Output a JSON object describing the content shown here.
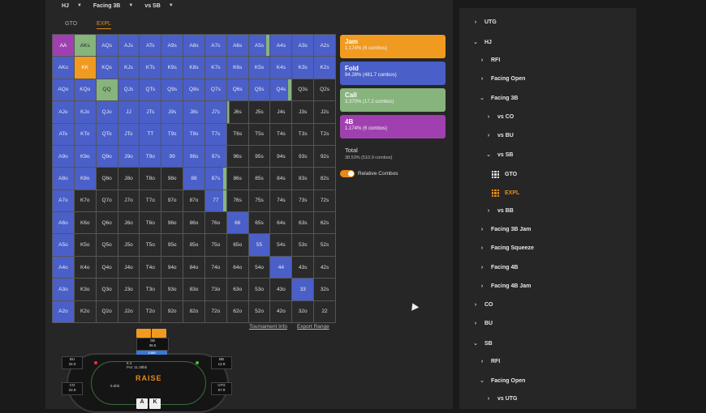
{
  "topbar": {
    "pos1": "HJ",
    "pos2": "Facing 3B",
    "pos3": "vs SB"
  },
  "tabs": [
    "GTO",
    "EXPL"
  ],
  "grid": [
    [
      "AA",
      "AKs",
      "AQs",
      "AJs",
      "ATs",
      "A9s",
      "A8s",
      "A7s",
      "A6s",
      "A5s",
      "A4s",
      "A3s",
      "A2s"
    ],
    [
      "AKo",
      "KK",
      "KQs",
      "KJs",
      "KTs",
      "K9s",
      "K8s",
      "K7s",
      "K6s",
      "K5s",
      "K4s",
      "K3s",
      "K2s"
    ],
    [
      "AQo",
      "KQo",
      "QQ",
      "QJs",
      "QTs",
      "Q9s",
      "Q8s",
      "Q7s",
      "Q6s",
      "Q5s",
      "Q4s",
      "Q3s",
      "Q2s"
    ],
    [
      "AJo",
      "KJo",
      "QJo",
      "JJ",
      "JTs",
      "J9s",
      "J8s",
      "J7s",
      "J6s",
      "J5s",
      "J4s",
      "J3s",
      "J2s"
    ],
    [
      "ATo",
      "KTo",
      "QTo",
      "JTo",
      "TT",
      "T9s",
      "T8s",
      "T7s",
      "T6s",
      "T5s",
      "T4s",
      "T3s",
      "T2s"
    ],
    [
      "A9o",
      "K9o",
      "Q9o",
      "J9o",
      "T9o",
      "99",
      "98s",
      "97s",
      "96s",
      "95s",
      "94s",
      "93s",
      "92s"
    ],
    [
      "A8o",
      "K8o",
      "Q8o",
      "J8o",
      "T8o",
      "98o",
      "88",
      "87s",
      "86s",
      "85s",
      "84s",
      "83s",
      "82s"
    ],
    [
      "A7o",
      "K7o",
      "Q7o",
      "J7o",
      "T7o",
      "97o",
      "87o",
      "77",
      "76s",
      "75s",
      "74s",
      "73s",
      "72s"
    ],
    [
      "A6o",
      "K6o",
      "Q6o",
      "J6o",
      "T6o",
      "96o",
      "86o",
      "76o",
      "66",
      "65s",
      "64s",
      "63s",
      "62s"
    ],
    [
      "A5o",
      "K5o",
      "Q5o",
      "J5o",
      "T5o",
      "95o",
      "85o",
      "75o",
      "65o",
      "55",
      "54s",
      "53s",
      "52s"
    ],
    [
      "A4o",
      "K4o",
      "Q4o",
      "J4o",
      "T4o",
      "94o",
      "84o",
      "74o",
      "64o",
      "54o",
      "44",
      "43s",
      "42s"
    ],
    [
      "A3o",
      "K3o",
      "Q3o",
      "J3o",
      "T3o",
      "93o",
      "83o",
      "73o",
      "63o",
      "53o",
      "43o",
      "33",
      "32s"
    ],
    [
      "A2o",
      "K2o",
      "Q2o",
      "J2o",
      "T2o",
      "92o",
      "82o",
      "72o",
      "62o",
      "52o",
      "42o",
      "32o",
      "22"
    ]
  ],
  "grid_colors": [
    [
      "p",
      "g",
      "b",
      "b",
      "b",
      "b",
      "b",
      "b",
      "b",
      "s",
      "b",
      "b",
      "b"
    ],
    [
      "b",
      "o",
      "b",
      "b",
      "b",
      "b",
      "b",
      "b",
      "b",
      "b",
      "b",
      "b",
      "b"
    ],
    [
      "b",
      "b",
      "g",
      "b",
      "b",
      "b",
      "b",
      "b",
      "b",
      "b",
      "s",
      "d",
      "d"
    ],
    [
      "b",
      "b",
      "b",
      "b",
      "b",
      "b",
      "b",
      "b",
      "x",
      "d",
      "d",
      "d",
      "d"
    ],
    [
      "b",
      "b",
      "b",
      "b",
      "b",
      "b",
      "b",
      "b",
      "d",
      "d",
      "d",
      "d",
      "d"
    ],
    [
      "b",
      "b",
      "b",
      "b",
      "b",
      "b",
      "b",
      "b",
      "d",
      "d",
      "d",
      "d",
      "d"
    ],
    [
      "b",
      "b",
      "d",
      "d",
      "d",
      "d",
      "b",
      "s",
      "d",
      "d",
      "d",
      "d",
      "d"
    ],
    [
      "b",
      "d",
      "d",
      "d",
      "d",
      "d",
      "d",
      "s",
      "d",
      "d",
      "d",
      "d",
      "d"
    ],
    [
      "b",
      "d",
      "d",
      "d",
      "d",
      "d",
      "d",
      "d",
      "b",
      "d",
      "d",
      "d",
      "d"
    ],
    [
      "b",
      "d",
      "d",
      "d",
      "d",
      "d",
      "d",
      "d",
      "d",
      "b",
      "d",
      "d",
      "d"
    ],
    [
      "b",
      "d",
      "d",
      "d",
      "d",
      "d",
      "d",
      "d",
      "d",
      "d",
      "b",
      "d",
      "d"
    ],
    [
      "b",
      "d",
      "d",
      "d",
      "d",
      "d",
      "d",
      "d",
      "d",
      "d",
      "d",
      "b",
      "d"
    ],
    [
      "b",
      "d",
      "d",
      "d",
      "d",
      "d",
      "d",
      "d",
      "d",
      "d",
      "d",
      "d",
      "d"
    ]
  ],
  "actions": [
    {
      "name": "Jam",
      "pct": "1.174% (6 combos)",
      "cls": "jam"
    },
    {
      "name": "Fold",
      "pct": "94.28% (481.7 combos)",
      "cls": "fold"
    },
    {
      "name": "Call",
      "pct": "3.370% (17.2 combos)",
      "cls": "call"
    },
    {
      "name": "4B",
      "pct": "1.174% (6 combos)",
      "cls": "fb"
    }
  ],
  "total": {
    "label": "Total",
    "value": "38.53% (510.9 combos)"
  },
  "toggle": {
    "label": "Relative Combos"
  },
  "links": {
    "info": "Tournament Info",
    "export": "Export Range"
  },
  "table": {
    "sb": {
      "name": "SB",
      "stack": "36.5",
      "bb_badge": "10BB"
    },
    "bu": {
      "name": "BU",
      "stack": "34.0"
    },
    "bb": {
      "name": "BB",
      "stack": "12.9"
    },
    "co": {
      "name": "CO",
      "stack": "22.9"
    },
    "utg": {
      "name": "UTG",
      "stack": "67.9"
    },
    "pot": "Pot: 11.38bb",
    "pot_small": "6.4",
    "logo": "RAISE",
    "hero_cards": [
      "A",
      "K"
    ],
    "small_stack": "5.6bb"
  },
  "tree": [
    {
      "label": "UTG",
      "depth": 0,
      "chev": "›",
      "y": 18
    },
    {
      "label": "HJ",
      "depth": 0,
      "chev": "⌄",
      "y": 42
    },
    {
      "label": "RFI",
      "depth": 1,
      "chev": "›",
      "y": 65
    },
    {
      "label": "Facing Open",
      "depth": 1,
      "chev": "›",
      "y": 88
    },
    {
      "label": "Facing 3B",
      "depth": 1,
      "chev": "⌄",
      "y": 111
    },
    {
      "label": "vs CO",
      "depth": 2,
      "chev": "›",
      "y": 135
    },
    {
      "label": "vs BU",
      "depth": 2,
      "chev": "›",
      "y": 158
    },
    {
      "label": "vs SB",
      "depth": 2,
      "chev": "⌄",
      "y": 181
    },
    {
      "label": "GTO",
      "depth": 3,
      "icon": "grid",
      "y": 205
    },
    {
      "label": "EXPL",
      "depth": 3,
      "icon": "grid-orange",
      "y": 228,
      "active": true
    },
    {
      "label": "vs BB",
      "depth": 2,
      "chev": "›",
      "y": 251
    },
    {
      "label": "Facing 3B Jam",
      "depth": 1,
      "chev": "›",
      "y": 274
    },
    {
      "label": "Facing Squeeze",
      "depth": 1,
      "chev": "›",
      "y": 297
    },
    {
      "label": "Facing 4B",
      "depth": 1,
      "chev": "›",
      "y": 321
    },
    {
      "label": "Facing 4B Jam",
      "depth": 1,
      "chev": "›",
      "y": 344
    },
    {
      "label": "CO",
      "depth": 0,
      "chev": "›",
      "y": 367
    },
    {
      "label": "BU",
      "depth": 0,
      "chev": "›",
      "y": 390
    },
    {
      "label": "SB",
      "depth": 0,
      "chev": "⌄",
      "y": 414
    },
    {
      "label": "RFI",
      "depth": 1,
      "chev": "›",
      "y": 437
    },
    {
      "label": "Facing Open",
      "depth": 1,
      "chev": "⌄",
      "y": 460
    },
    {
      "label": "vs UTG",
      "depth": 2,
      "chev": "›",
      "y": 483
    }
  ],
  "colors": {
    "blue": "#4a5fc8",
    "green": "#86b47c",
    "orange": "#f09a20",
    "purple": "#a040b0"
  },
  "icons": {
    "caret": "caret-down-icon",
    "chev": "chevron-icon",
    "grid": "grid-icon"
  }
}
